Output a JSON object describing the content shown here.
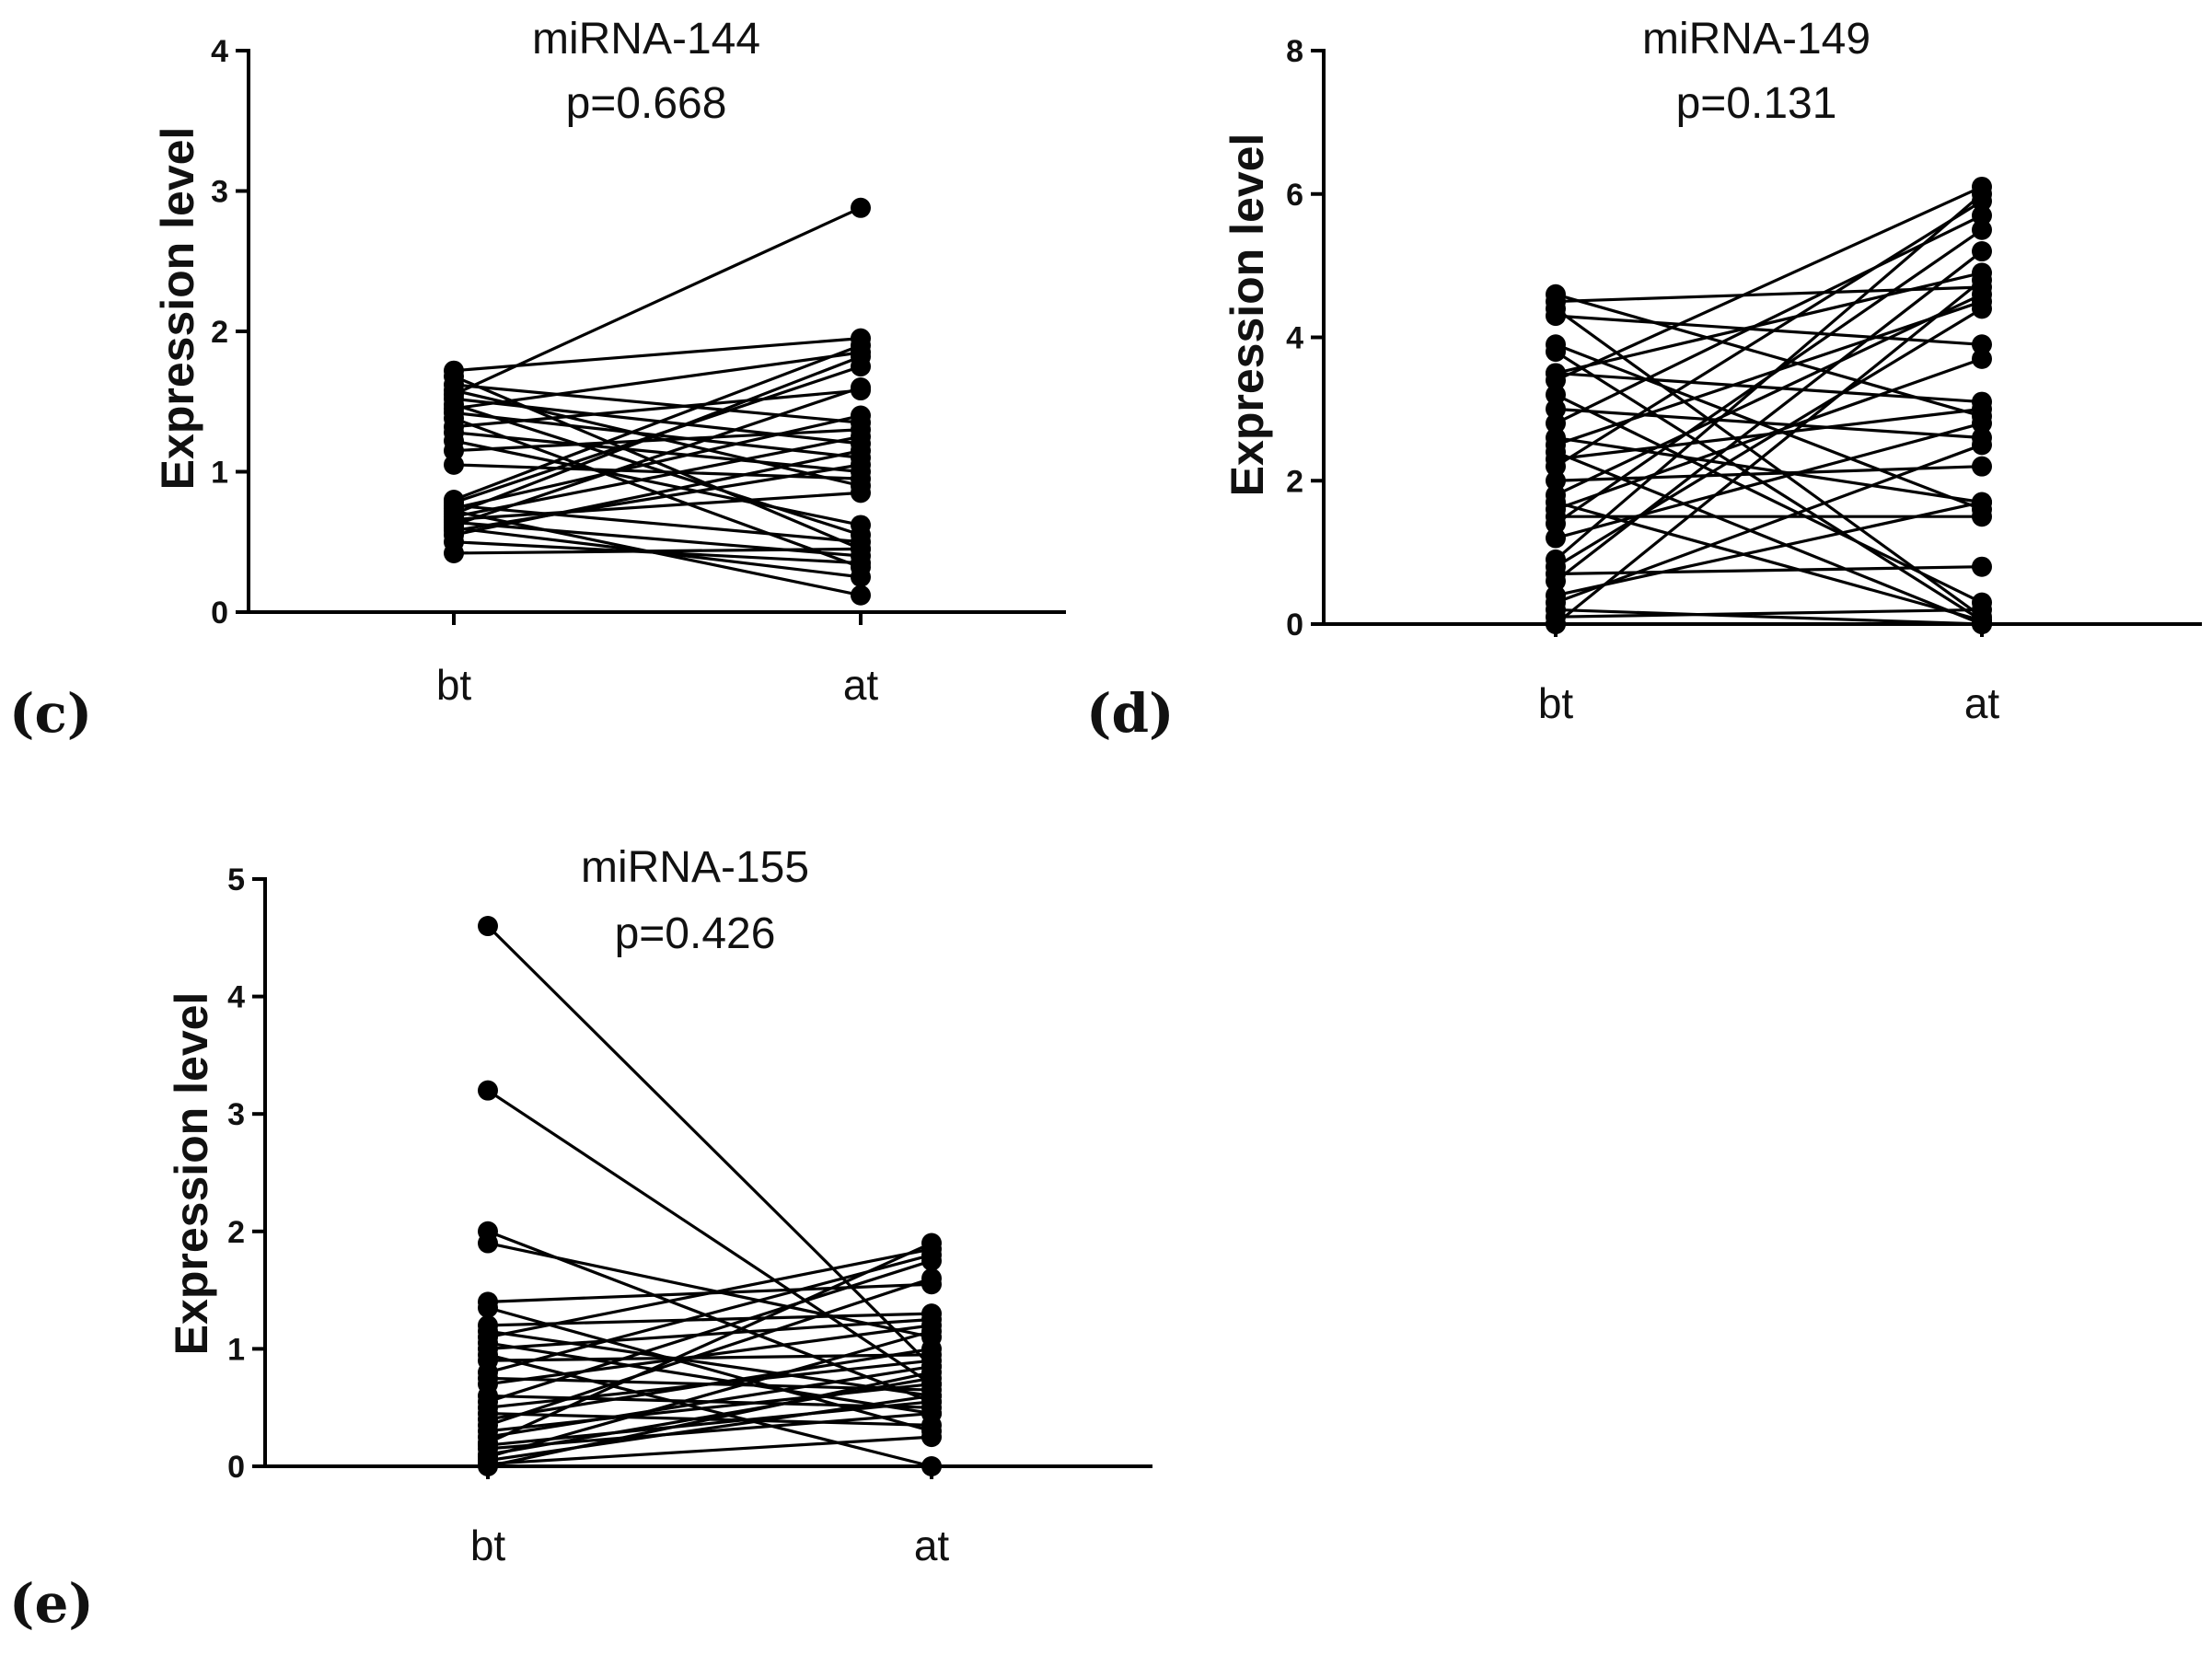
{
  "chart_data": [
    {
      "type": "line",
      "panel_label": "(c)",
      "title": "miRNA-144",
      "subtitle": "p=0.668",
      "ylabel": "Expression level",
      "categories": [
        "bt",
        "at"
      ],
      "ylim": [
        0,
        4
      ],
      "yticks": [
        "0",
        "1",
        "2",
        "3",
        "4"
      ],
      "pairs": [
        [
          1.55,
          2.88
        ],
        [
          1.72,
          1.95
        ],
        [
          1.68,
          0.45
        ],
        [
          1.62,
          1.35
        ],
        [
          1.58,
          0.9
        ],
        [
          1.52,
          1.2
        ],
        [
          1.48,
          0.55
        ],
        [
          1.45,
          1.85
        ],
        [
          1.42,
          1.1
        ],
        [
          1.38,
          0.32
        ],
        [
          1.32,
          1.58
        ],
        [
          1.28,
          1.0
        ],
        [
          1.22,
          0.62
        ],
        [
          1.15,
          1.3
        ],
        [
          1.05,
          0.95
        ],
        [
          0.8,
          1.9
        ],
        [
          0.78,
          1.75
        ],
        [
          0.76,
          0.5
        ],
        [
          0.74,
          1.4
        ],
        [
          0.72,
          0.12
        ],
        [
          0.7,
          1.82
        ],
        [
          0.68,
          1.25
        ],
        [
          0.66,
          0.85
        ],
        [
          0.64,
          0.4
        ],
        [
          0.62,
          1.6
        ],
        [
          0.6,
          0.25
        ],
        [
          0.58,
          1.05
        ],
        [
          0.55,
          1.15
        ],
        [
          0.5,
          0.35
        ],
        [
          0.42,
          0.45
        ]
      ]
    },
    {
      "type": "line",
      "panel_label": "(d)",
      "title": "miRNA-149",
      "subtitle": "p=0.131",
      "ylabel": "Expression level",
      "categories": [
        "bt",
        "at"
      ],
      "ylim": [
        0,
        8
      ],
      "yticks": [
        "0",
        "2",
        "4",
        "6",
        "8"
      ],
      "pairs": [
        [
          4.6,
          2.9
        ],
        [
          4.5,
          4.7
        ],
        [
          4.4,
          0.1
        ],
        [
          4.3,
          3.9
        ],
        [
          3.9,
          1.6
        ],
        [
          3.8,
          0.05
        ],
        [
          3.5,
          4.9
        ],
        [
          3.5,
          3.1
        ],
        [
          3.4,
          6.1
        ],
        [
          3.2,
          0.3
        ],
        [
          3.0,
          2.6
        ],
        [
          2.8,
          5.7
        ],
        [
          2.6,
          1.7
        ],
        [
          2.5,
          4.5
        ],
        [
          2.4,
          0.0
        ],
        [
          2.3,
          3.0
        ],
        [
          2.2,
          5.9
        ],
        [
          2.0,
          2.2
        ],
        [
          1.8,
          4.6
        ],
        [
          1.7,
          0.05
        ],
        [
          1.6,
          3.7
        ],
        [
          1.5,
          1.5
        ],
        [
          1.4,
          5.5
        ],
        [
          1.2,
          2.8
        ],
        [
          0.9,
          6.0
        ],
        [
          0.8,
          4.4
        ],
        [
          0.7,
          0.8
        ],
        [
          0.6,
          5.2
        ],
        [
          0.4,
          1.7
        ],
        [
          0.3,
          2.5
        ],
        [
          0.1,
          0.2
        ],
        [
          0.0,
          0.0
        ],
        [
          0.0,
          4.8
        ],
        [
          0.2,
          0.0
        ]
      ]
    },
    {
      "type": "line",
      "panel_label": "(e)",
      "title": "miRNA-155",
      "subtitle": "p=0.426",
      "ylabel": "Expression level",
      "categories": [
        "bt",
        "at"
      ],
      "ylim": [
        0,
        5
      ],
      "yticks": [
        "0",
        "1",
        "2",
        "3",
        "4",
        "5"
      ],
      "pairs": [
        [
          4.6,
          0.85
        ],
        [
          3.2,
          0.7
        ],
        [
          2.0,
          0.55
        ],
        [
          1.9,
          1.1
        ],
        [
          1.4,
          1.55
        ],
        [
          1.35,
          0.3
        ],
        [
          1.2,
          1.3
        ],
        [
          1.15,
          0.6
        ],
        [
          1.1,
          1.85
        ],
        [
          1.05,
          0.45
        ],
        [
          1.0,
          1.25
        ],
        [
          0.95,
          0.0
        ],
        [
          0.9,
          0.95
        ],
        [
          0.8,
          1.8
        ],
        [
          0.75,
          0.65
        ],
        [
          0.7,
          1.2
        ],
        [
          0.6,
          0.5
        ],
        [
          0.55,
          1.75
        ],
        [
          0.5,
          0.9
        ],
        [
          0.45,
          0.35
        ],
        [
          0.4,
          1.0
        ],
        [
          0.35,
          1.6
        ],
        [
          0.3,
          0.7
        ],
        [
          0.25,
          0.85
        ],
        [
          0.2,
          1.9
        ],
        [
          0.18,
          0.55
        ],
        [
          0.15,
          0.45
        ],
        [
          0.1,
          0.75
        ],
        [
          0.08,
          1.15
        ],
        [
          0.05,
          0.6
        ],
        [
          0.02,
          0.25
        ],
        [
          0.0,
          0.8
        ]
      ]
    }
  ]
}
